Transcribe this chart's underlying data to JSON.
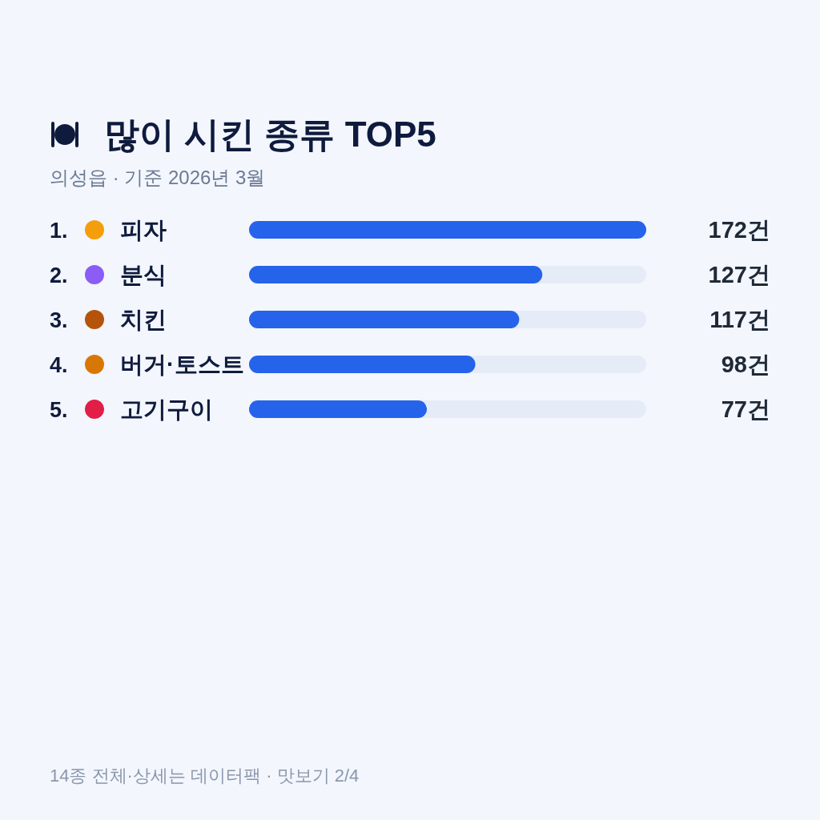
{
  "chart_data": {
    "type": "bar",
    "orientation": "horizontal",
    "title": "많이 시킨 종류 TOP5",
    "subtitle": "의성읍 · 기준 2026년 3월",
    "categories": [
      "1. 피자",
      "2. 분식",
      "3. 치킨",
      "4. 버거·토스트",
      "5. 고기구이"
    ],
    "values": [
      172,
      127,
      117,
      98,
      77
    ],
    "value_labels": [
      "172건",
      "127건",
      "117건",
      "98건",
      "77건"
    ],
    "color": "#2563eb",
    "xlim": [
      0,
      172
    ],
    "annotations": [
      "14종 전체·상세는 데이터팩 · 맛보기 2/4"
    ]
  }
}
